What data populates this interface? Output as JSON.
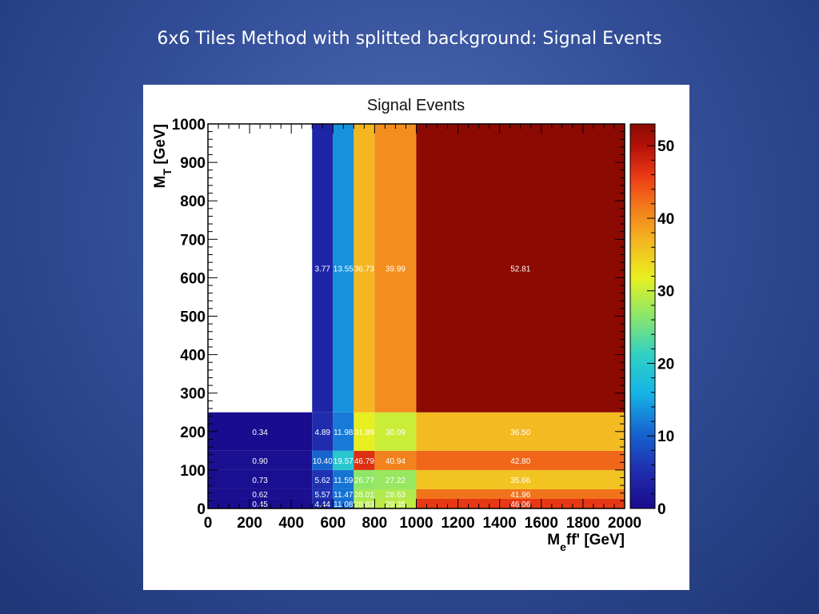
{
  "slide": {
    "title": "6x6 Tiles Method with splitted background: Signal Events"
  },
  "colors": {
    "background": "#2d4a94",
    "panel": "#ffffff"
  },
  "chart_data": {
    "type": "heatmap",
    "title": "Signal Events",
    "xlabel": "M_eff' [GeV]",
    "ylabel": "M_T [GeV]",
    "xlim": [
      0,
      2000
    ],
    "ylim": [
      0,
      1000
    ],
    "zlim": [
      0,
      53
    ],
    "x_ticks": [
      0,
      200,
      400,
      600,
      800,
      1000,
      1200,
      1400,
      1600,
      1800,
      2000
    ],
    "y_ticks": [
      0,
      100,
      200,
      300,
      400,
      500,
      600,
      700,
      800,
      900,
      1000
    ],
    "z_ticks": [
      0,
      10,
      20,
      30,
      40,
      50
    ],
    "x_edges": [
      0,
      500,
      600,
      700,
      800,
      1000,
      2000
    ],
    "y_edges": [
      0,
      25,
      50,
      100,
      150,
      250,
      1000
    ],
    "cells": [
      [
        {
          "value": 0.45,
          "label": "0.45"
        },
        {
          "value": 4.44,
          "label": "4.44"
        },
        {
          "value": 11.08,
          "label": "11.08"
        },
        {
          "value": 28.83,
          "label": "28.83"
        },
        {
          "value": 29.35,
          "label": "29.35"
        },
        {
          "value": 46.06,
          "label": "46.06"
        }
      ],
      [
        {
          "value": 0.62,
          "label": "0.62"
        },
        {
          "value": 5.57,
          "label": "5.57"
        },
        {
          "value": 11.47,
          "label": "11.47"
        },
        {
          "value": 28.01,
          "label": "28.01"
        },
        {
          "value": 28.63,
          "label": "28.63"
        },
        {
          "value": 41.96,
          "label": "41.96"
        }
      ],
      [
        {
          "value": 0.73,
          "label": "0.73"
        },
        {
          "value": 5.62,
          "label": "5.62"
        },
        {
          "value": 11.59,
          "label": "11.59"
        },
        {
          "value": 26.77,
          "label": "26.77"
        },
        {
          "value": 27.22,
          "label": "27.22"
        },
        {
          "value": 35.66,
          "label": "35.66"
        }
      ],
      [
        {
          "value": 0.9,
          "label": "0.90"
        },
        {
          "value": 10.4,
          "label": "10.40"
        },
        {
          "value": 19.57,
          "label": "19.57"
        },
        {
          "value": 46.79,
          "label": "46.79"
        },
        {
          "value": 40.94,
          "label": "40.94"
        },
        {
          "value": 42.8,
          "label": "42.80"
        }
      ],
      [
        {
          "value": 0.34,
          "label": "0.34"
        },
        {
          "value": 4.89,
          "label": "4.89"
        },
        {
          "value": 11.98,
          "label": "11.98"
        },
        {
          "value": 31.89,
          "label": "31.89"
        },
        {
          "value": 30.09,
          "label": "30.09"
        },
        {
          "value": 36.5,
          "label": "36.50"
        }
      ],
      [
        null,
        {
          "value": 3.77,
          "label": "3.77"
        },
        {
          "value": 13.55,
          "label": "13.55"
        },
        {
          "value": 36.73,
          "label": "36.73"
        },
        {
          "value": 39.99,
          "label": "39.99"
        },
        {
          "value": 52.81,
          "label": "52.81"
        }
      ]
    ],
    "grid": false,
    "legend": "colorbar-right"
  }
}
